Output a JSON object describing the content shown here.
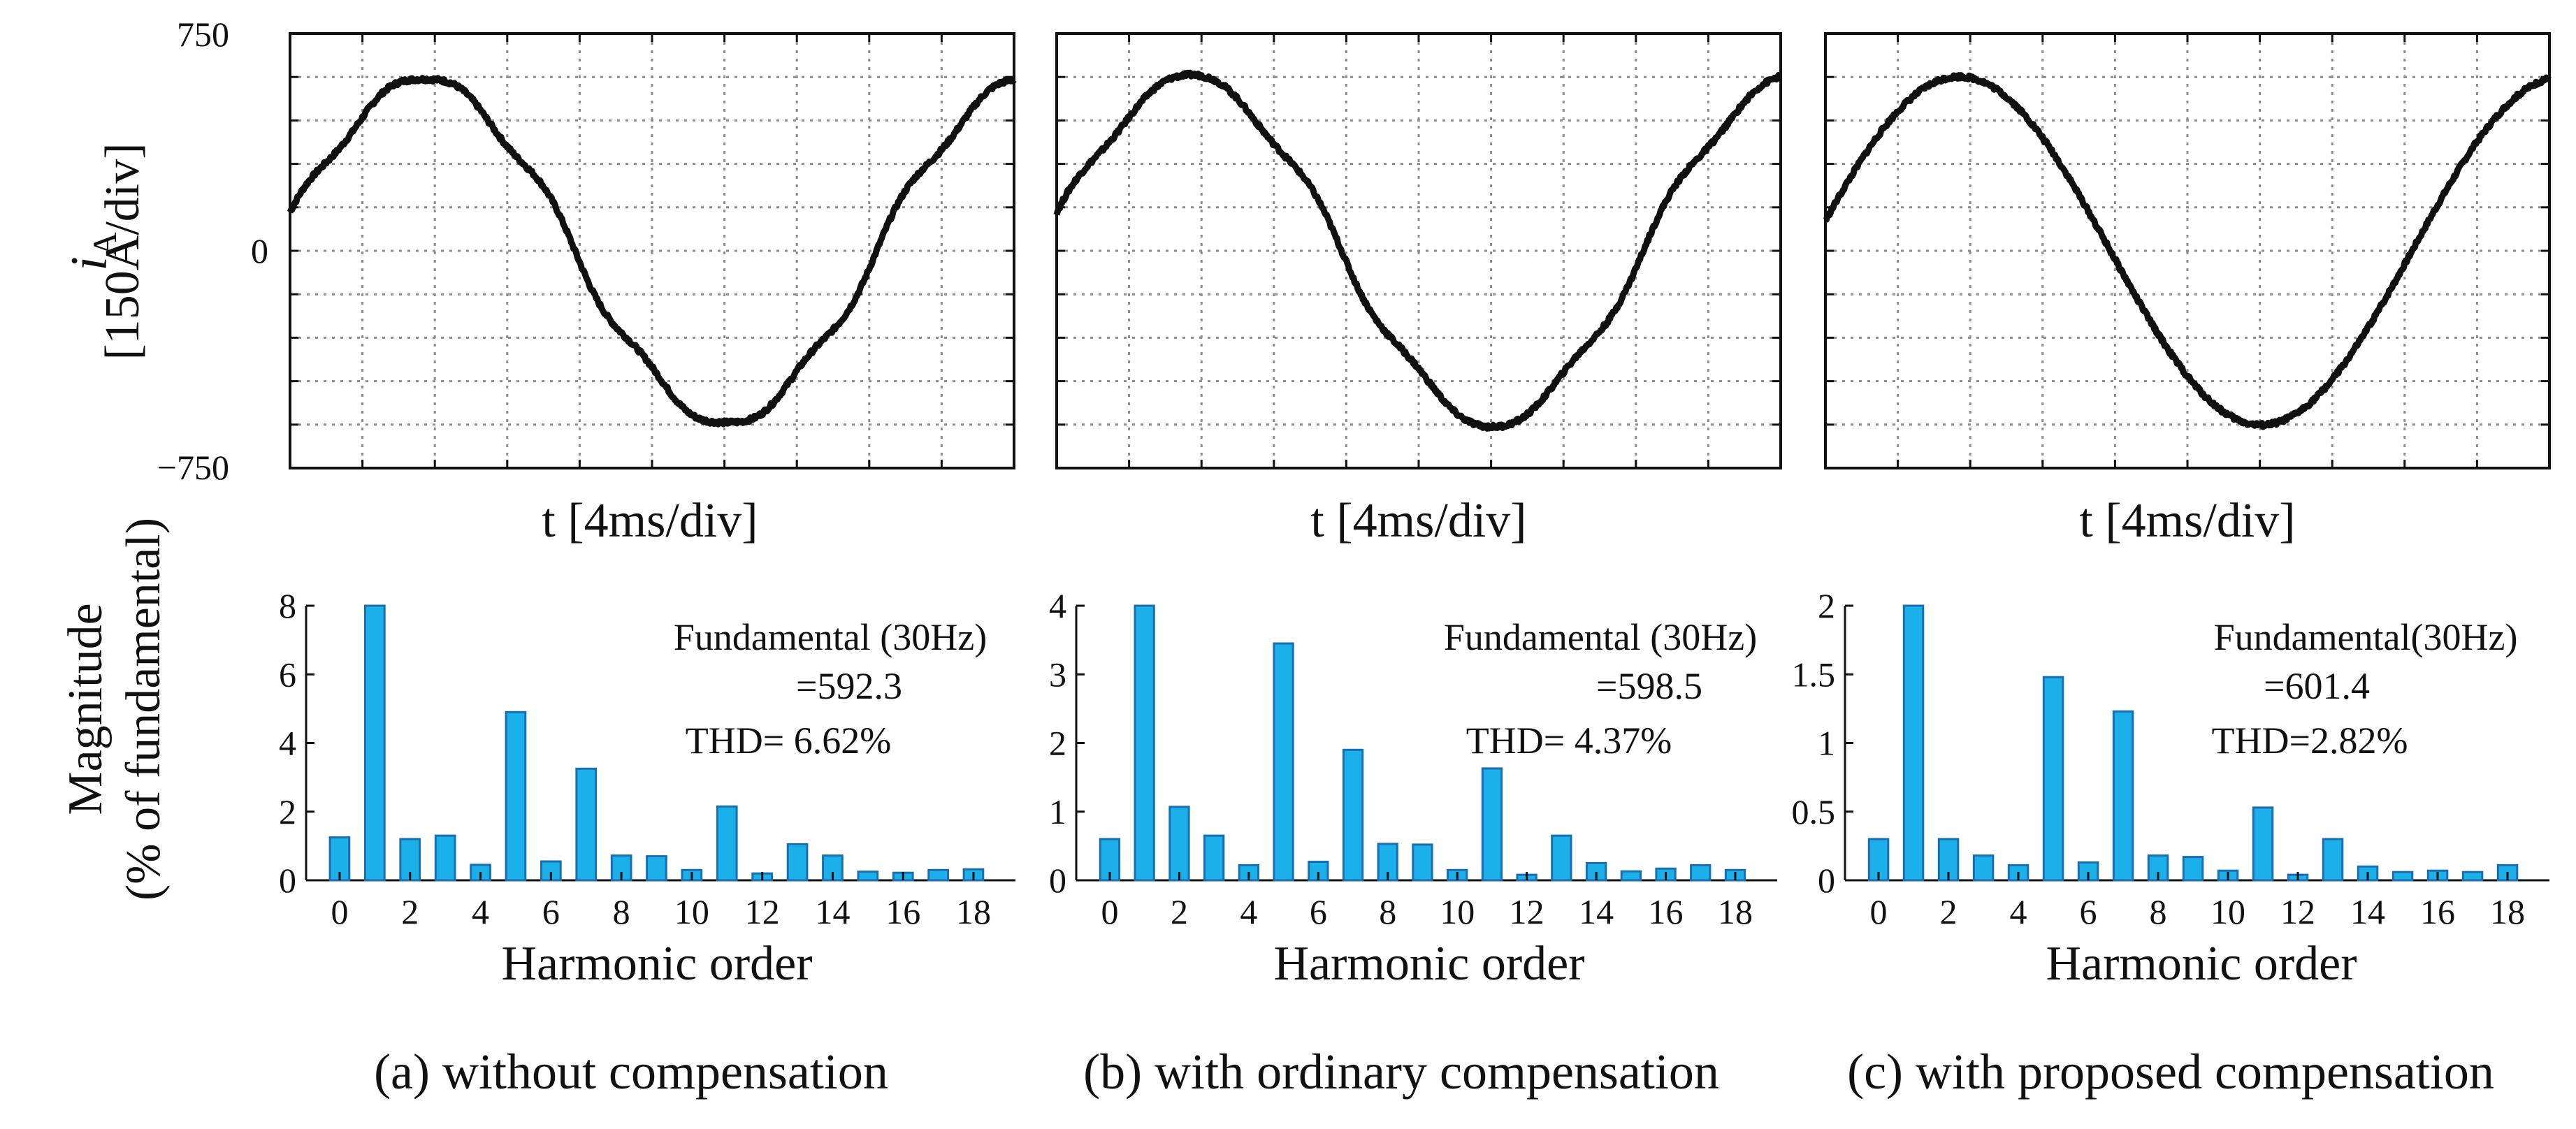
{
  "figure": {
    "y_label_top": {
      "symbol": "i",
      "subscript": "A",
      "scale": "[150A/div]"
    },
    "y_label_bottom": {
      "line1": "Magnitude",
      "line2": "(% of fundamental)"
    }
  },
  "colors": {
    "bar_fill": "#1bb0ea",
    "bar_edge": "#1a6fb0",
    "wave": "#111111",
    "grid": "#8c8c8c"
  },
  "chart_data": [
    {
      "type": "line",
      "panel": "a",
      "title": "",
      "xlabel": "t [4ms/div]",
      "ylabel": "iA [150A/div]",
      "x_divisions": 10,
      "y_divisions": 10,
      "ylim": [
        -750,
        750
      ],
      "ytick_labels": [
        "750",
        "0",
        "−750"
      ],
      "frequency_hz": 30,
      "amplitude_a": 592.3,
      "start_phase_deg": 10,
      "grid": true
    },
    {
      "type": "line",
      "panel": "b",
      "title": "",
      "xlabel": "t [4ms/div]",
      "x_divisions": 10,
      "y_divisions": 10,
      "ylim": [
        -750,
        750
      ],
      "frequency_hz": 30,
      "amplitude_a": 598.5,
      "start_phase_deg": 10,
      "grid": true
    },
    {
      "type": "line",
      "panel": "c",
      "title": "",
      "xlabel": "t [4ms/div]",
      "x_divisions": 10,
      "y_divisions": 10,
      "ylim": [
        -750,
        750
      ],
      "frequency_hz": 30,
      "amplitude_a": 601.4,
      "start_phase_deg": 10,
      "grid": true
    },
    {
      "type": "bar",
      "panel": "a",
      "xlabel": "Harmonic order",
      "ylabel": "Magnitude (% of fundamental)",
      "categories": [
        0,
        1,
        2,
        3,
        4,
        5,
        6,
        7,
        8,
        9,
        10,
        11,
        12,
        13,
        14,
        15,
        16,
        17,
        18
      ],
      "xtick_labels": [
        "0",
        "2",
        "4",
        "6",
        "8",
        "10",
        "12",
        "14",
        "16",
        "18"
      ],
      "values": [
        1.25,
        8.0,
        1.2,
        1.3,
        0.45,
        4.9,
        0.55,
        3.25,
        0.72,
        0.7,
        0.3,
        2.15,
        0.2,
        1.05,
        0.72,
        0.25,
        0.22,
        0.3,
        0.32
      ],
      "ylim": [
        0,
        8
      ],
      "ytick_labels": [
        "0",
        "2",
        "4",
        "6",
        "8"
      ],
      "ytick_values": [
        0,
        2,
        4,
        6,
        8
      ],
      "annotation": {
        "line1": "Fundamental (30Hz)",
        "line2": "=592.3",
        "line3": "THD= 6.62%"
      },
      "caption": "(a) without compensation"
    },
    {
      "type": "bar",
      "panel": "b",
      "xlabel": "Harmonic order",
      "categories": [
        0,
        1,
        2,
        3,
        4,
        5,
        6,
        7,
        8,
        9,
        10,
        11,
        12,
        13,
        14,
        15,
        16,
        17,
        18
      ],
      "xtick_labels": [
        "0",
        "2",
        "4",
        "6",
        "8",
        "10",
        "12",
        "14",
        "16",
        "18"
      ],
      "values": [
        0.6,
        4.0,
        1.07,
        0.65,
        0.22,
        3.45,
        0.27,
        1.9,
        0.53,
        0.52,
        0.15,
        1.63,
        0.08,
        0.65,
        0.25,
        0.13,
        0.17,
        0.22,
        0.15
      ],
      "ylim": [
        0,
        4
      ],
      "ytick_labels": [
        "0",
        "1",
        "2",
        "3",
        "4"
      ],
      "ytick_values": [
        0,
        1,
        2,
        3,
        4
      ],
      "annotation": {
        "line1": "Fundamental (30Hz)",
        "line2": "=598.5",
        "line3": "THD= 4.37%"
      },
      "caption": "(b) with ordinary compensation"
    },
    {
      "type": "bar",
      "panel": "c",
      "xlabel": "Harmonic order",
      "categories": [
        0,
        1,
        2,
        3,
        4,
        5,
        6,
        7,
        8,
        9,
        10,
        11,
        12,
        13,
        14,
        15,
        16,
        17,
        18
      ],
      "xtick_labels": [
        "0",
        "2",
        "4",
        "6",
        "8",
        "10",
        "12",
        "14",
        "16",
        "18"
      ],
      "values": [
        0.3,
        2.0,
        0.3,
        0.18,
        0.11,
        1.48,
        0.13,
        1.23,
        0.18,
        0.17,
        0.07,
        0.53,
        0.04,
        0.3,
        0.1,
        0.06,
        0.07,
        0.06,
        0.11
      ],
      "ylim": [
        0,
        2
      ],
      "ytick_labels": [
        "0",
        "0.5",
        "1",
        "1.5",
        "2"
      ],
      "ytick_values": [
        0,
        0.5,
        1,
        1.5,
        2
      ],
      "annotation": {
        "line1": "Fundamental(30Hz)",
        "line2": "=601.4",
        "line3": "THD=2.82%"
      },
      "caption": "(c) with proposed compensation"
    }
  ]
}
